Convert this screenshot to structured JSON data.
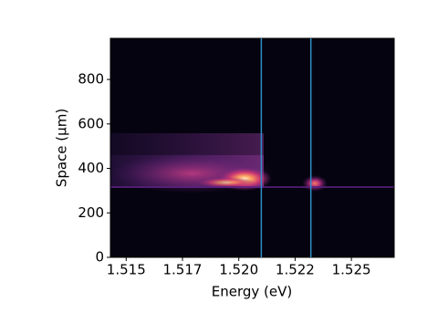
{
  "chart_data": {
    "type": "heatmap",
    "xlabel": "Energy (eV)",
    "ylabel": "Space (μm)",
    "xlim": [
      1.5143,
      1.5269
    ],
    "ylim": [
      0,
      985
    ],
    "xticks": [
      {
        "value": 1.515,
        "label": "1.515"
      },
      {
        "value": 1.5175,
        "label": "1.517"
      },
      {
        "value": 1.52,
        "label": "1.520"
      },
      {
        "value": 1.5225,
        "label": "1.522"
      },
      {
        "value": 1.525,
        "label": "1.525"
      }
    ],
    "yticks": [
      0,
      200,
      400,
      600,
      800
    ],
    "vlines": [
      1.521,
      1.5232
    ],
    "vline_color": "#2f8fc7",
    "background": "#05030f"
  }
}
